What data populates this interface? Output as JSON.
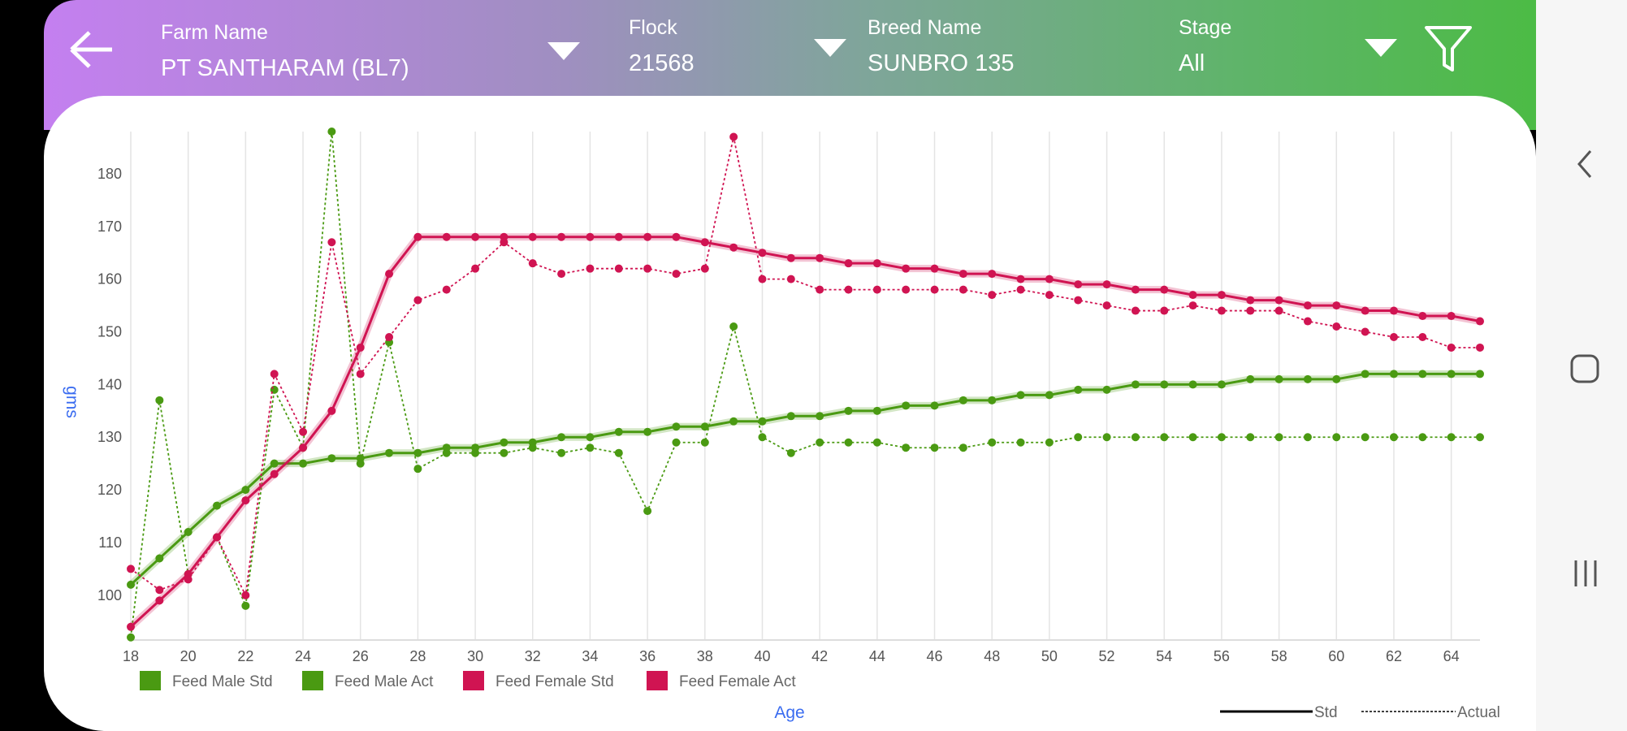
{
  "header": {
    "farm_label": "Farm Name",
    "farm_value": "PT SANTHARAM (BL7)",
    "flock_label": "Flock",
    "flock_value": "21568",
    "breed_label": "Breed Name",
    "breed_value": "SUNBRO 135",
    "stage_label": "Stage",
    "stage_value": "All"
  },
  "colors": {
    "male": "#4a9a12",
    "female": "#d01452",
    "axis_label": "#3a6cf0"
  },
  "chart_data": {
    "type": "line",
    "xlabel": "Age",
    "ylabel": "gms",
    "x": [
      18,
      19,
      20,
      21,
      22,
      23,
      24,
      25,
      26,
      27,
      28,
      29,
      30,
      31,
      32,
      33,
      34,
      35,
      36,
      37,
      38,
      39,
      40,
      41,
      42,
      43,
      44,
      45,
      46,
      47,
      48,
      49,
      50,
      51,
      52,
      53,
      54,
      55,
      56,
      57,
      58,
      59,
      60,
      61,
      62,
      63,
      64,
      65
    ],
    "xlim": [
      18,
      65
    ],
    "ylim": [
      91.5,
      188
    ],
    "xticks": [
      18,
      20,
      22,
      24,
      26,
      28,
      30,
      32,
      34,
      36,
      38,
      40,
      42,
      44,
      46,
      48,
      50,
      52,
      54,
      56,
      58,
      60,
      62,
      64
    ],
    "yticks": [
      100,
      110,
      120,
      130,
      140,
      150,
      160,
      170,
      180
    ],
    "grid": "vertical",
    "legend_position": "bottom-left",
    "style_legend": {
      "std": "Std",
      "actual": "Actual"
    },
    "series": [
      {
        "name": "Feed Male Std",
        "color": "#4a9a12",
        "style": "std",
        "values": [
          102,
          107,
          112,
          117,
          120,
          125,
          125,
          126,
          126,
          127,
          127,
          128,
          128,
          129,
          129,
          130,
          130,
          131,
          131,
          132,
          132,
          133,
          133,
          134,
          134,
          135,
          135,
          136,
          136,
          137,
          137,
          138,
          138,
          139,
          139,
          140,
          140,
          140,
          140,
          141,
          141,
          141,
          141,
          142,
          142,
          142,
          142,
          142
        ]
      },
      {
        "name": "Feed Male Act",
        "color": "#4a9a12",
        "style": "actual",
        "values": [
          92,
          137,
          104,
          111,
          98,
          139,
          128,
          188,
          125,
          148,
          124,
          127,
          127,
          127,
          128,
          127,
          128,
          127,
          116,
          129,
          129,
          151,
          130,
          127,
          129,
          129,
          129,
          128,
          128,
          128,
          129,
          129,
          129,
          130,
          130,
          130,
          130,
          130,
          130,
          130,
          130,
          130,
          130,
          130,
          130,
          130,
          130,
          130
        ]
      },
      {
        "name": "Feed Female Std",
        "color": "#d01452",
        "style": "std",
        "values": [
          94,
          99,
          104,
          111,
          118,
          123,
          128,
          135,
          147,
          161,
          168,
          168,
          168,
          168,
          168,
          168,
          168,
          168,
          168,
          168,
          167,
          166,
          165,
          164,
          164,
          163,
          163,
          162,
          162,
          161,
          161,
          160,
          160,
          159,
          159,
          158,
          158,
          157,
          157,
          156,
          156,
          155,
          155,
          154,
          154,
          153,
          153,
          152
        ]
      },
      {
        "name": "Feed Female Act",
        "color": "#d01452",
        "style": "actual",
        "values": [
          105,
          101,
          103,
          111,
          100,
          142,
          131,
          167,
          142,
          149,
          156,
          158,
          162,
          167,
          163,
          161,
          162,
          162,
          162,
          161,
          162,
          187,
          160,
          160,
          158,
          158,
          158,
          158,
          158,
          158,
          157,
          158,
          157,
          156,
          155,
          154,
          154,
          155,
          154,
          154,
          154,
          152,
          151,
          150,
          149,
          149,
          147,
          147
        ]
      }
    ]
  }
}
